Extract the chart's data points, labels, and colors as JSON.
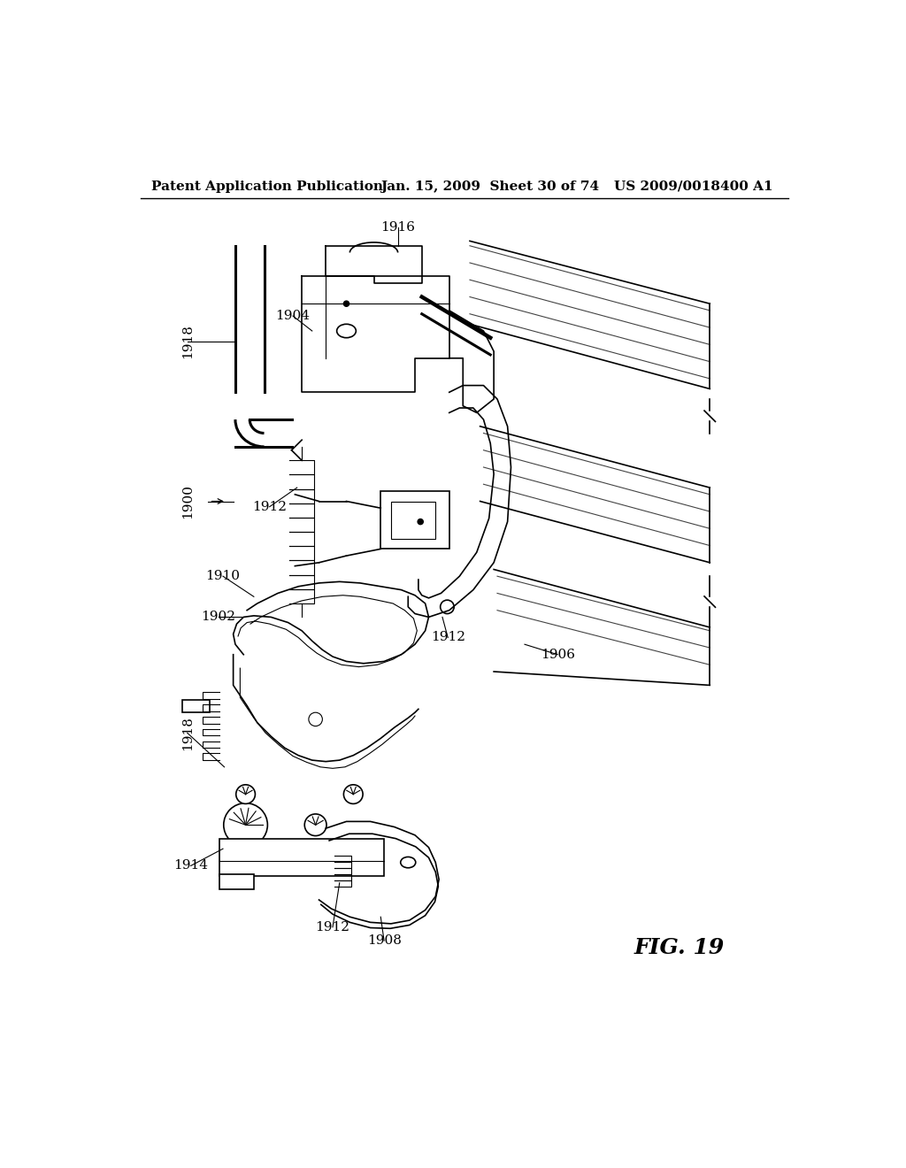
{
  "background_color": "#ffffff",
  "header_left": "Patent Application Publication",
  "header_center": "Jan. 15, 2009  Sheet 30 of 74",
  "header_right": "US 2009/0018400 A1",
  "figure_label": "FIG. 19",
  "header_fontsize": 11,
  "fig_label_fontsize": 18,
  "label_fontsize": 11
}
